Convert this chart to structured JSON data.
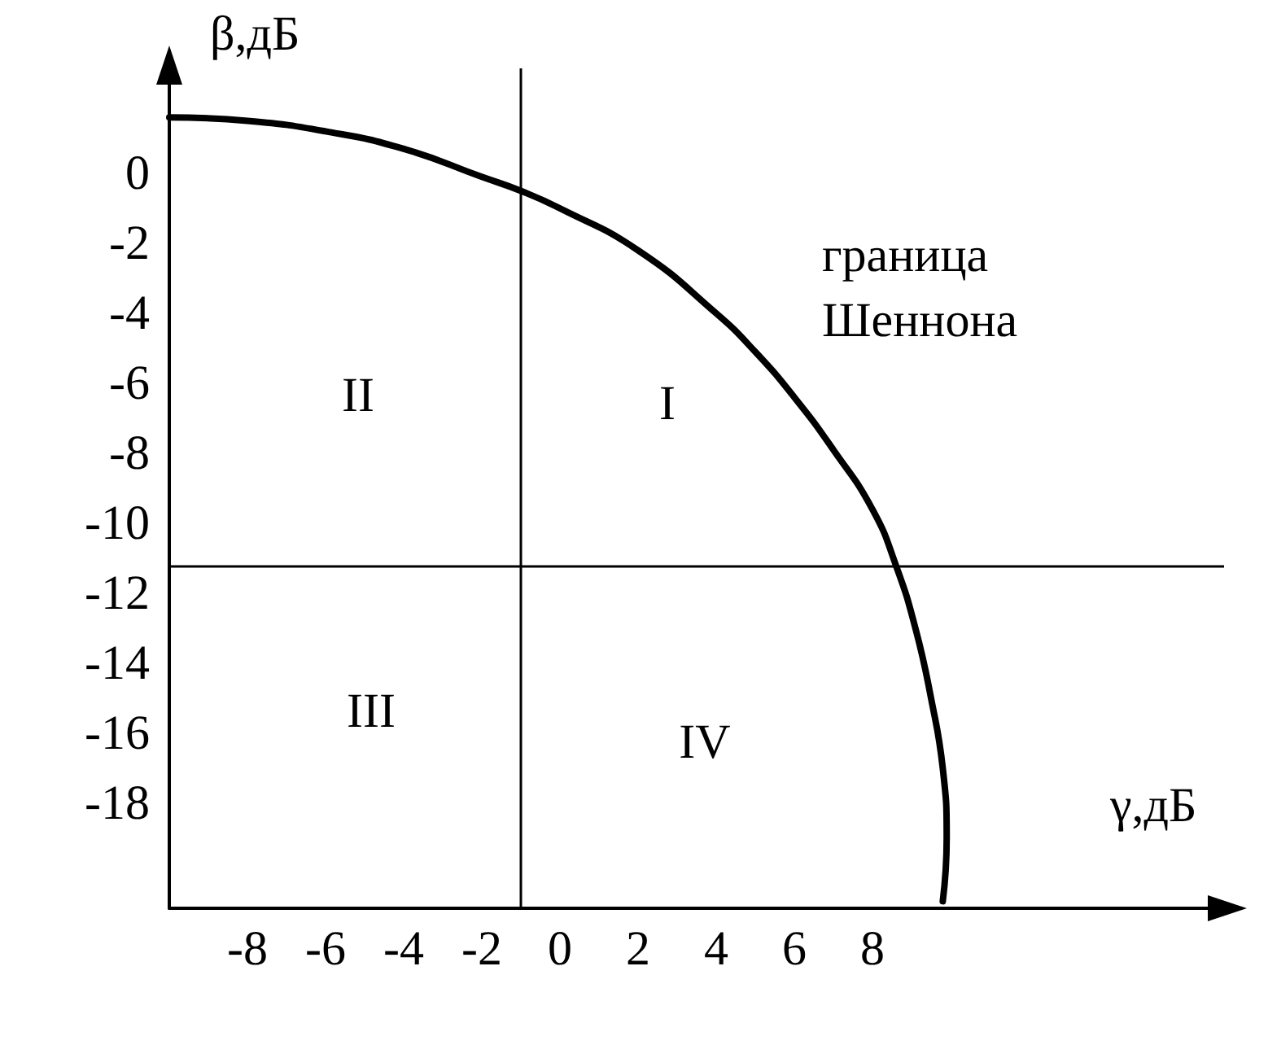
{
  "chart_data": {
    "type": "line",
    "xlabel": "γ,дБ",
    "ylabel": "β,дБ",
    "series": [
      {
        "color": "#000000",
        "x": [
          -10,
          -8,
          -6,
          -4,
          -2,
          -1,
          0,
          2,
          4,
          5,
          6,
          7,
          8,
          8.6,
          9.1,
          9.5,
          9.8,
          9.9,
          9.8
        ],
        "values": [
          1.6,
          1.5,
          1.2,
          0.7,
          -0.1,
          -0.5,
          -1.0,
          -2.2,
          -4.0,
          -5.1,
          -6.4,
          -7.9,
          -9.6,
          -11.2,
          -13,
          -15,
          -17,
          -19,
          -20.8
        ]
      }
    ],
    "xlim": [
      -10,
      17
    ],
    "ylim": [
      -21,
      3
    ],
    "xticks": [
      -8,
      -6,
      -4,
      -2,
      0,
      2,
      4,
      6,
      8
    ],
    "yticks": [
      0,
      -2,
      -4,
      -6,
      -8,
      -10,
      -12,
      -14,
      -16,
      -18
    ],
    "ref_lines": [
      {
        "axis": "x",
        "value": -1
      },
      {
        "axis": "y",
        "value": -11.2
      }
    ],
    "annotations": [
      "I",
      "II",
      "III",
      "IV",
      "граница\nШеннона"
    ],
    "grid": false,
    "marker": "none",
    "line_style": "solid"
  }
}
